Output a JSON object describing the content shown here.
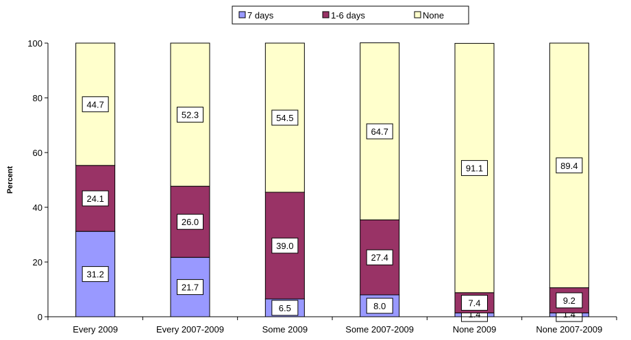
{
  "chart_data": {
    "type": "bar",
    "stacked": true,
    "title": "",
    "xlabel": "",
    "ylabel": "Percent",
    "ylim": [
      0,
      100
    ],
    "yticks": [
      0,
      20,
      40,
      60,
      80,
      100
    ],
    "grid": false,
    "legend_position": "top-center",
    "categories": [
      "Every 2009",
      "Every 2007-2009",
      "Some 2009",
      "Some 2007-2009",
      "None 2009",
      "None 2007-2009"
    ],
    "series": [
      {
        "name": "7 days",
        "color": "#9999ff",
        "values": [
          31.2,
          21.7,
          6.5,
          8.0,
          1.4,
          1.4
        ]
      },
      {
        "name": "1-6 days",
        "color": "#993366",
        "values": [
          24.1,
          26.0,
          39.0,
          27.4,
          7.4,
          9.2
        ]
      },
      {
        "name": "None",
        "color": "#ffffcc",
        "values": [
          44.7,
          52.3,
          54.5,
          64.7,
          91.1,
          89.4
        ]
      }
    ]
  }
}
